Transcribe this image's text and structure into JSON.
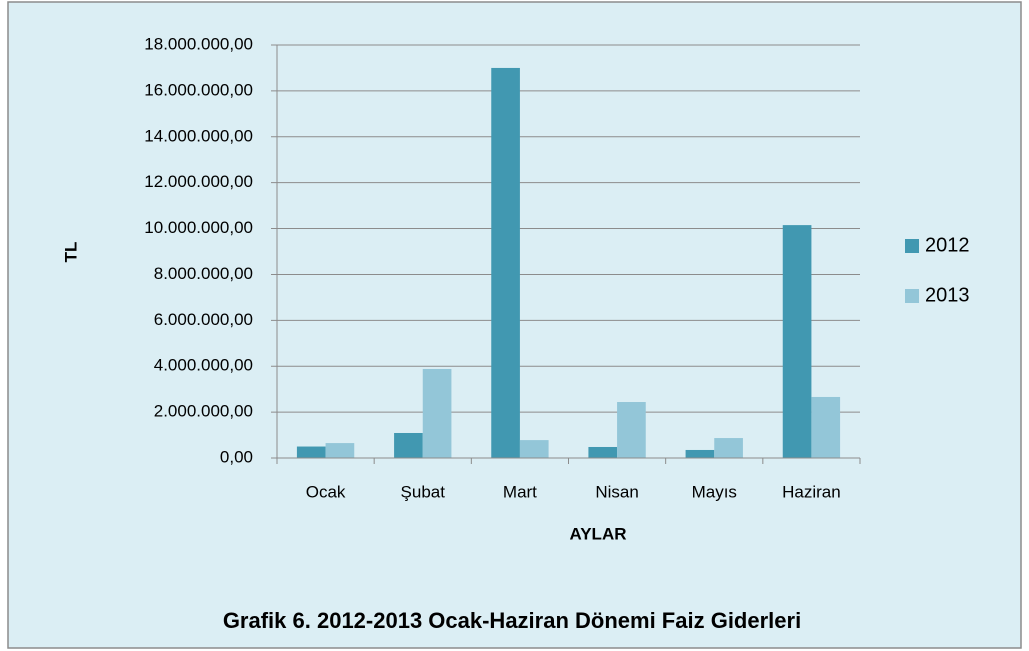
{
  "chart_data": {
    "type": "bar",
    "title": "Grafik 6. 2012-2013 Ocak-Haziran Dönemi Faiz Giderleri",
    "xlabel": "AYLAR",
    "ylabel": "TL",
    "categories": [
      "Ocak",
      "Şubat",
      "Mart",
      "Nisan",
      "Mayıs",
      "Haziran"
    ],
    "series": [
      {
        "name": "2012",
        "color": "#4198b1",
        "values": [
          500000,
          1090000,
          17000000,
          480000,
          350000,
          10150000
        ]
      },
      {
        "name": "2013",
        "color": "#93c6d8",
        "values": [
          650000,
          3880000,
          780000,
          2440000,
          870000,
          2660000
        ]
      }
    ],
    "ylim": [
      0,
      18000000
    ],
    "yticks": [
      {
        "value": 0,
        "label": "0,00"
      },
      {
        "value": 2000000,
        "label": "2.000.000,00"
      },
      {
        "value": 4000000,
        "label": "4.000.000,00"
      },
      {
        "value": 6000000,
        "label": "6.000.000,00"
      },
      {
        "value": 8000000,
        "label": "8.000.000,00"
      },
      {
        "value": 10000000,
        "label": "10.000.000,00"
      },
      {
        "value": 12000000,
        "label": "12.000.000,00"
      },
      {
        "value": 14000000,
        "label": "14.000.000,00"
      },
      {
        "value": 16000000,
        "label": "16.000.000,00"
      },
      {
        "value": 18000000,
        "label": "18.000.000,00"
      }
    ],
    "grid": true,
    "legend": "right"
  }
}
